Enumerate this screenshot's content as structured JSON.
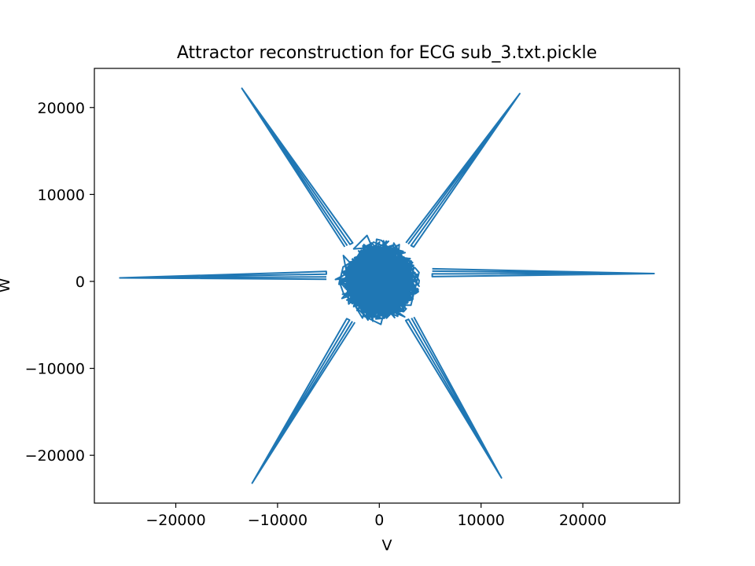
{
  "chart_data": {
    "type": "line",
    "title": "Attractor reconstruction for ECG sub_3.txt.pickle",
    "xlabel": "V",
    "ylabel": "W",
    "xlim": [
      -28000,
      29500
    ],
    "ylim": [
      -25500,
      24500
    ],
    "xticks": [
      -20000,
      -10000,
      0,
      10000,
      20000
    ],
    "xtick_labels": [
      "−20000",
      "−10000",
      "0",
      "10000",
      "20000"
    ],
    "yticks": [
      -20000,
      -10000,
      0,
      10000,
      20000
    ],
    "ytick_labels": [
      "−20000",
      "−10000",
      "0",
      "10000",
      "20000"
    ],
    "grid": false,
    "series": [
      {
        "color": "#1f77b4",
        "spikes": [
          {
            "tip": [
              -13500,
              22200
            ],
            "base": [
              -3000,
              4200
            ]
          },
          {
            "tip": [
              13800,
              21600
            ],
            "base": [
              3000,
              4200
            ]
          },
          {
            "tip": [
              27000,
              900
            ],
            "base": [
              5200,
              1000
            ]
          },
          {
            "tip": [
              -25500,
              400
            ],
            "base": [
              -5200,
              700
            ]
          },
          {
            "tip": [
              -12500,
              -23200
            ],
            "base": [
              -2800,
              -4500
            ]
          },
          {
            "tip": [
              12000,
              -22600
            ],
            "base": [
              3000,
              -4300
            ]
          }
        ],
        "core": {
          "center": [
            0,
            0
          ],
          "radius_x": 5500,
          "radius_y": 6300
        }
      }
    ]
  }
}
